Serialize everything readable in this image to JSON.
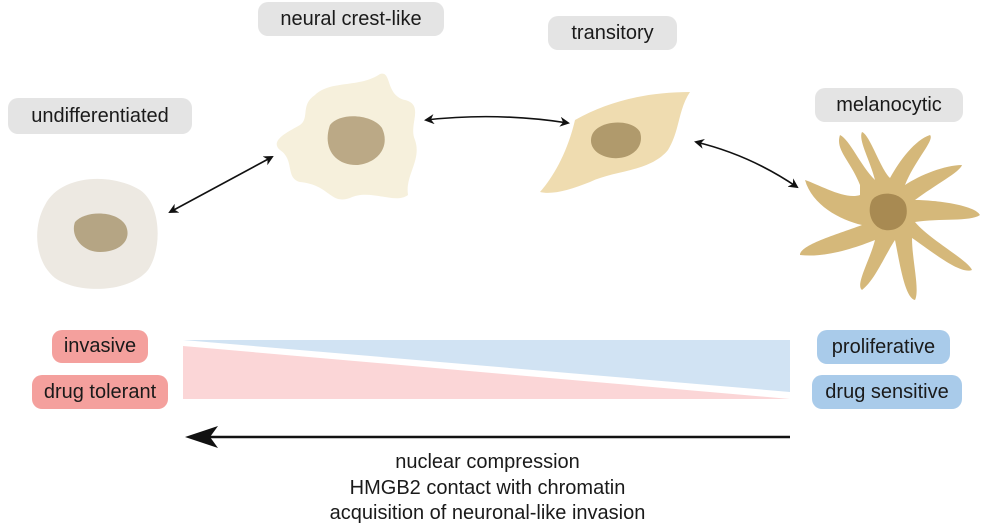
{
  "states": [
    {
      "label": "undifferentiated"
    },
    {
      "label": "neural crest-like"
    },
    {
      "label": "transitory"
    },
    {
      "label": "melanocytic"
    }
  ],
  "left_properties": [
    "invasive",
    "drug tolerant"
  ],
  "right_properties": [
    "proliferative",
    "drug sensitive"
  ],
  "arrow_caption": [
    "nuclear compression",
    "HMGB2 contact with chromatin",
    "acquisition of neuronal-like invasion"
  ],
  "colors": {
    "invasive": "#f4a09d",
    "proliferative": "#a9cbea",
    "invasive_gradient": "#fbd6d7",
    "proliferative_gradient": "#d1e3f3",
    "state_label_bg": "#e4e4e4",
    "cell_undifferentiated": "#ede9e2",
    "cell_neural_crest": "#f6f0dc",
    "cell_transitory": "#efdcb0",
    "cell_melanocytic": "#d5b87a"
  }
}
